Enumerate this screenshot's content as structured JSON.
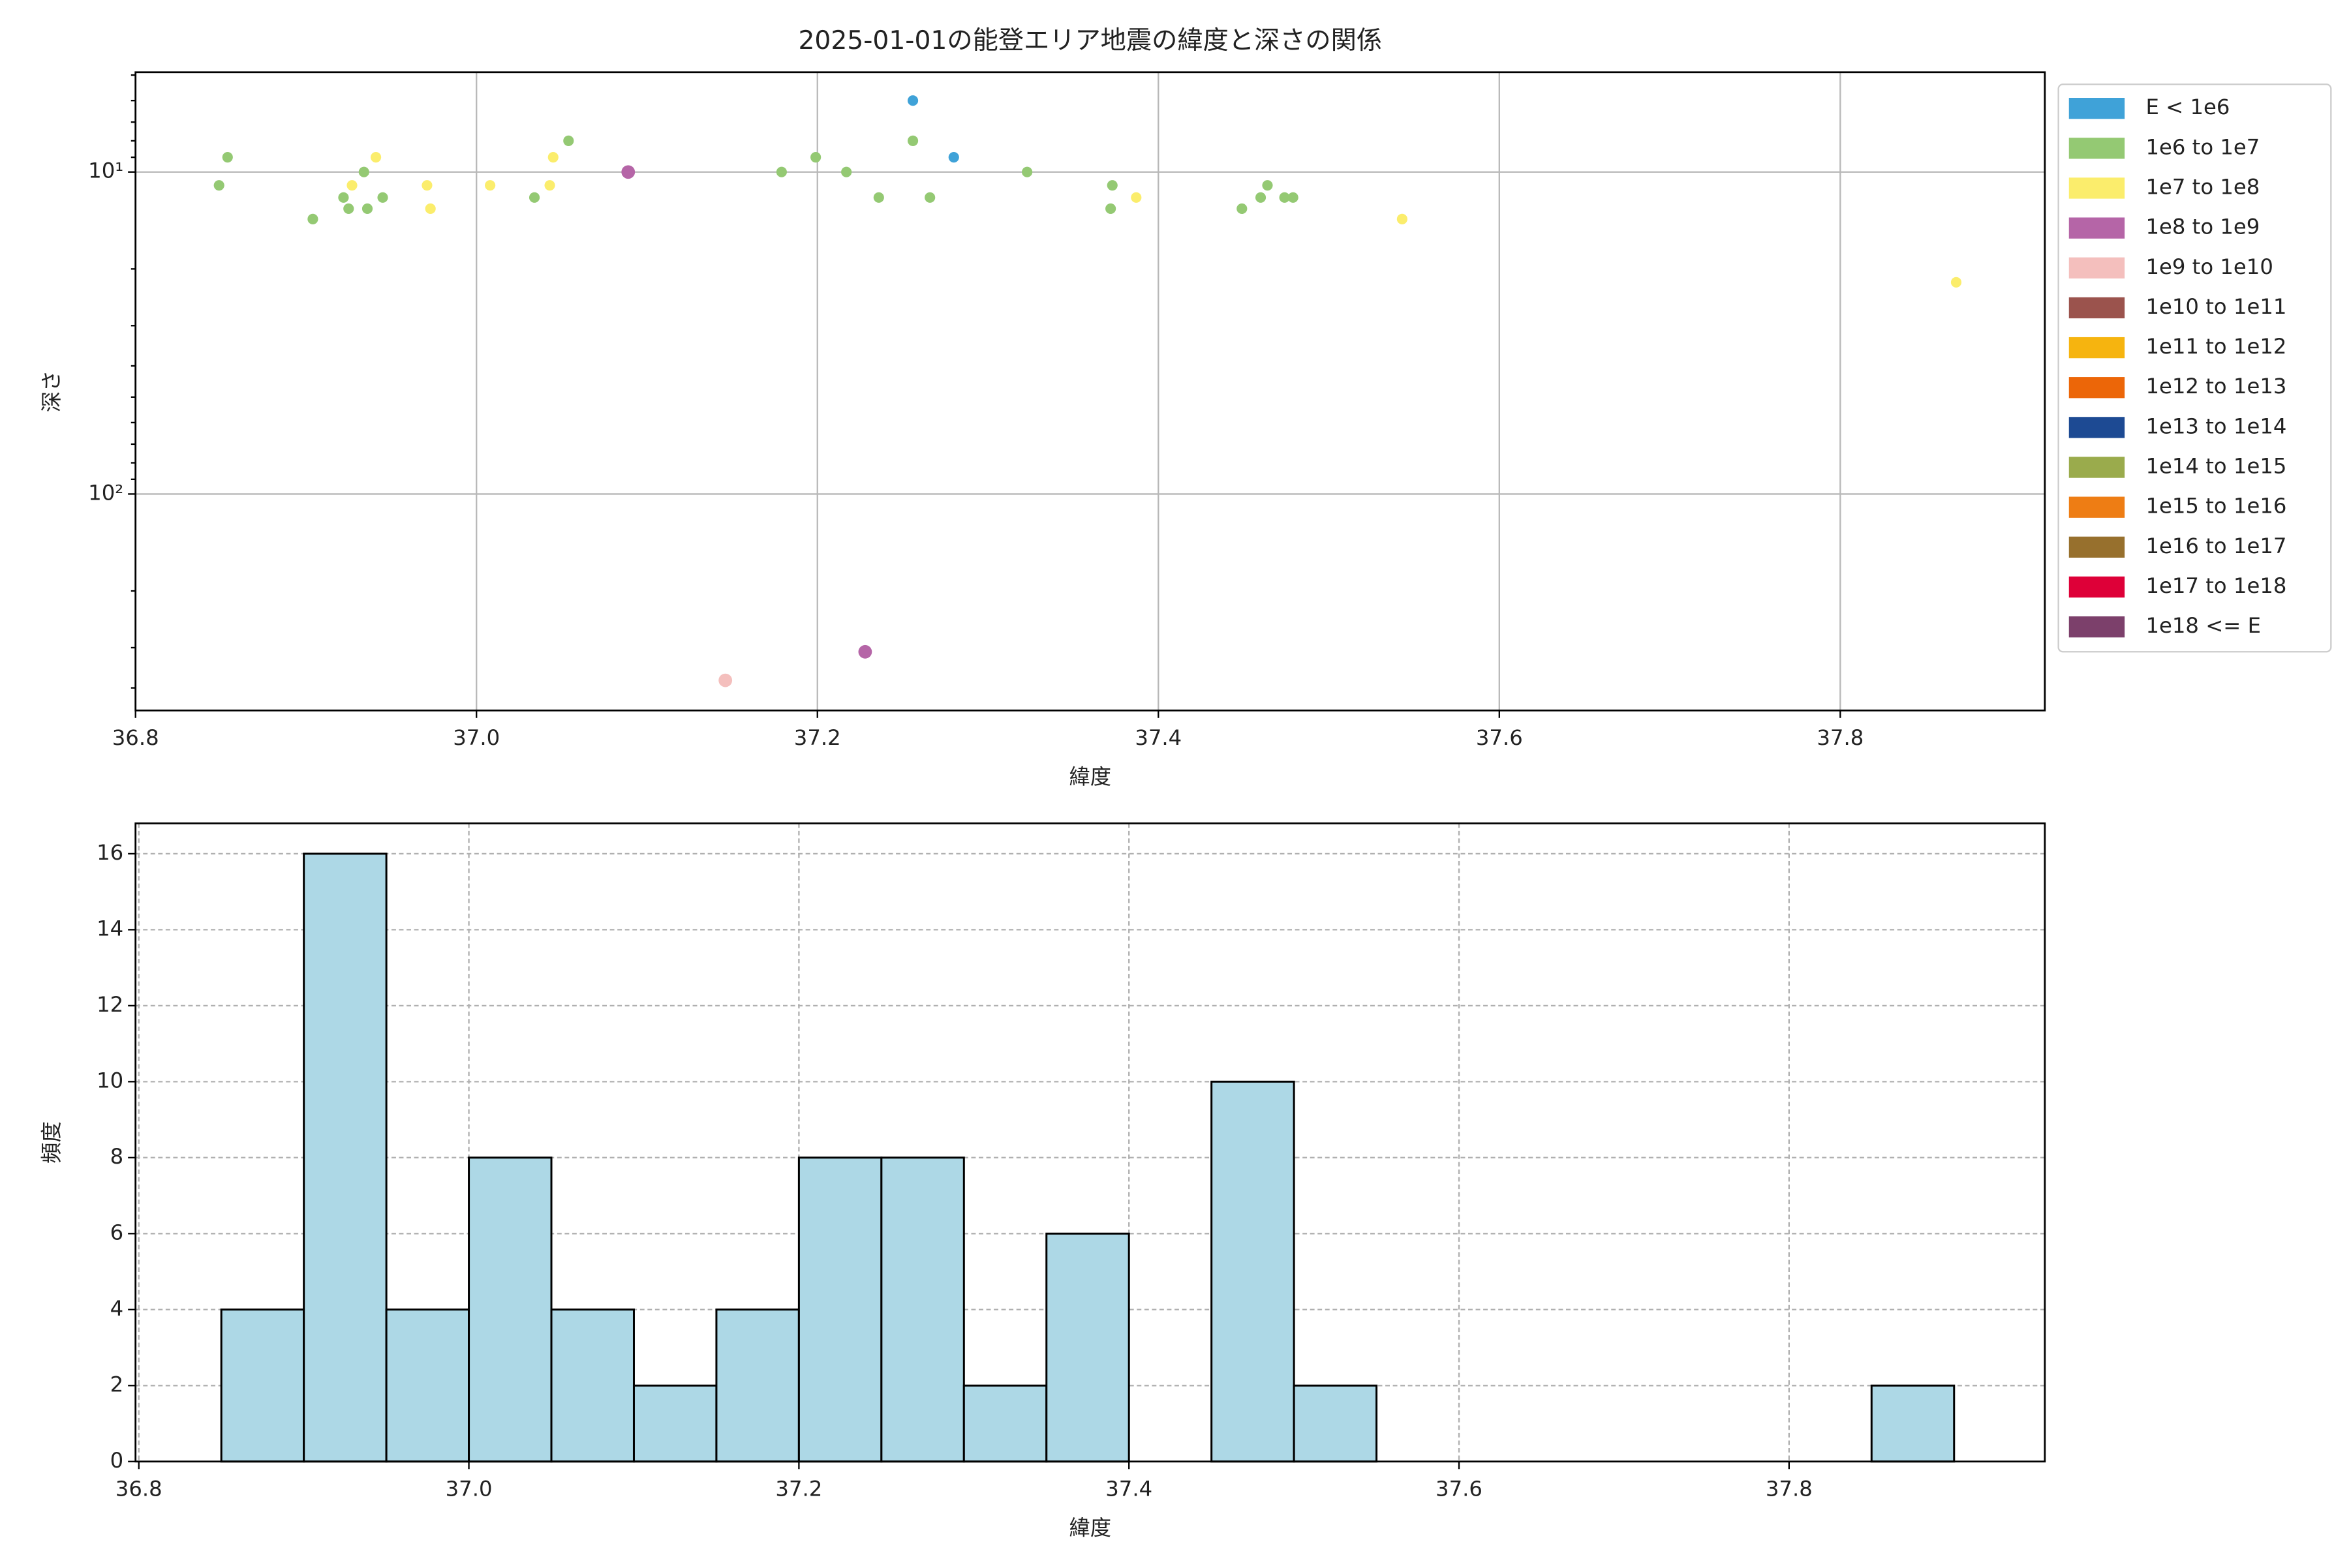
{
  "chart_data": [
    {
      "type": "scatter",
      "title": "2025-01-01の能登エリア地震の緯度と深さの関係",
      "x_label": "緯度",
      "y_label": "深さ",
      "log_y": true,
      "invert_y": true,
      "grid": true,
      "legend": "outside-upper-right",
      "xlim": [
        36.8,
        37.92
      ],
      "xticks": [
        36.8,
        {
          "value": 37.0,
          "label": "37.0"
        },
        37.2,
        37.4,
        37.6,
        37.8
      ],
      "ylim": [
        4.9,
        470
      ],
      "yticks": [
        {
          "value": 10,
          "label": "10¹"
        },
        {
          "value": 100,
          "label": "10²"
        }
      ],
      "yminorticks": [
        5,
        6,
        7,
        8,
        9,
        20,
        30,
        40,
        50,
        60,
        70,
        80,
        90,
        200,
        300,
        400
      ],
      "series": [
        {
          "name": "E < 1e6",
          "color": "#3fa2d8",
          "x": [
            37.256,
            37.28
          ],
          "y": [
            6,
            9
          ]
        },
        {
          "name": "1e6 to 1e7",
          "color": "#94c973",
          "x": [
            36.849,
            36.854,
            36.904,
            36.922,
            36.925,
            36.934,
            36.936,
            36.945,
            37.034,
            37.054,
            37.179,
            37.199,
            37.217,
            37.236,
            37.256,
            37.266,
            37.323,
            37.372,
            37.373,
            37.449,
            37.46,
            37.464,
            37.474,
            37.479
          ],
          "y": [
            11,
            9,
            14,
            12,
            13,
            10,
            13,
            12,
            12,
            8,
            10,
            9,
            10,
            12,
            8,
            12,
            10,
            13,
            11,
            13,
            12,
            11,
            12,
            12
          ]
        },
        {
          "name": "1e7 to 1e8",
          "color": "#fbed6c",
          "x": [
            36.927,
            36.941,
            36.971,
            36.973,
            37.008,
            37.043,
            37.045,
            37.387,
            37.543,
            37.868
          ],
          "y": [
            11,
            9,
            11,
            13,
            11,
            11,
            9,
            12,
            14,
            22
          ]
        },
        {
          "name": "1e8 to 1e9",
          "color": "#b565a7",
          "x": [
            37.089,
            37.228
          ],
          "y": [
            10,
            309
          ]
        },
        {
          "name": "1e9 to 1e10",
          "color": "#f4bfbd",
          "x": [
            37.146
          ],
          "y": [
            379
          ]
        },
        {
          "name": "1e10 to 1e11",
          "color": "#9b534d",
          "x": [],
          "y": []
        },
        {
          "name": "1e11 to 1e12",
          "color": "#f6b40f",
          "x": [],
          "y": []
        },
        {
          "name": "1e12 to 1e13",
          "color": "#ec6608",
          "x": [],
          "y": []
        },
        {
          "name": "1e13 to 1e14",
          "color": "#1d4a93",
          "x": [],
          "y": []
        },
        {
          "name": "1e14 to 1e15",
          "color": "#9aab4c",
          "x": [],
          "y": []
        },
        {
          "name": "1e15 to 1e16",
          "color": "#ee7d14",
          "x": [],
          "y": []
        },
        {
          "name": "1e16 to 1e17",
          "color": "#97702d",
          "x": [],
          "y": []
        },
        {
          "name": "1e17 to 1e18",
          "color": "#de0038",
          "x": [],
          "y": []
        },
        {
          "name": "1e18 <= E",
          "color": "#7c406b",
          "x": [],
          "y": []
        }
      ]
    },
    {
      "type": "histogram",
      "x_label": "緯度",
      "y_label": "頻度",
      "grid": true,
      "color": "#add8e6",
      "edge_color": "#000000",
      "xlim": [
        36.798,
        37.955
      ],
      "xticks": [
        36.8,
        {
          "value": 37.0,
          "label": "37.0"
        },
        37.2,
        37.4,
        37.6,
        37.8
      ],
      "ylim": [
        0,
        16.8
      ],
      "yticks": [
        0,
        2,
        4,
        6,
        8,
        10,
        12,
        14,
        16
      ],
      "bins": [
        36.85,
        36.9,
        36.95,
        37.0,
        37.05,
        37.1,
        37.15,
        37.2,
        37.25,
        37.3,
        37.35,
        37.4,
        37.45,
        37.5,
        37.55,
        37.6,
        37.65,
        37.7,
        37.75,
        37.8,
        37.85,
        37.9
      ],
      "values": [
        4,
        16,
        4,
        8,
        4,
        2,
        4,
        8,
        8,
        2,
        6,
        0,
        10,
        2,
        0,
        0,
        0,
        0,
        0,
        0,
        2
      ]
    }
  ]
}
